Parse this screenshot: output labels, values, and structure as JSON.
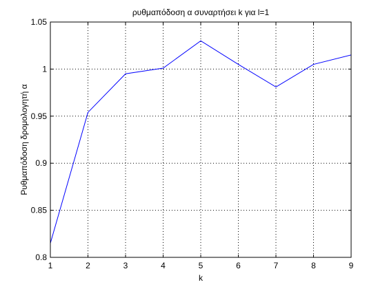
{
  "chart_data": {
    "type": "line",
    "title": "ρυθμαπόδοση α συναρτήσει k για l=1",
    "xlabel": "k",
    "ylabel": "Ρυθμαπόδοση δρομολογητή α",
    "xlim": [
      1,
      9
    ],
    "ylim": [
      0.8,
      1.05
    ],
    "xticks": [
      1,
      2,
      3,
      4,
      5,
      6,
      7,
      8,
      9
    ],
    "yticks": [
      0.8,
      0.85,
      0.9,
      0.95,
      1,
      1.05
    ],
    "ytick_labels": [
      "0.8",
      "0.85",
      "0.9",
      "0.95",
      "1",
      "1.05"
    ],
    "grid": true,
    "line_color": "#0000ff",
    "series": [
      {
        "x": [
          1,
          2,
          3,
          4,
          5,
          6,
          7,
          8,
          9
        ],
        "values": [
          0.815,
          0.954,
          0.995,
          1.001,
          1.03,
          1.005,
          0.981,
          1.005,
          1.015
        ]
      }
    ]
  }
}
